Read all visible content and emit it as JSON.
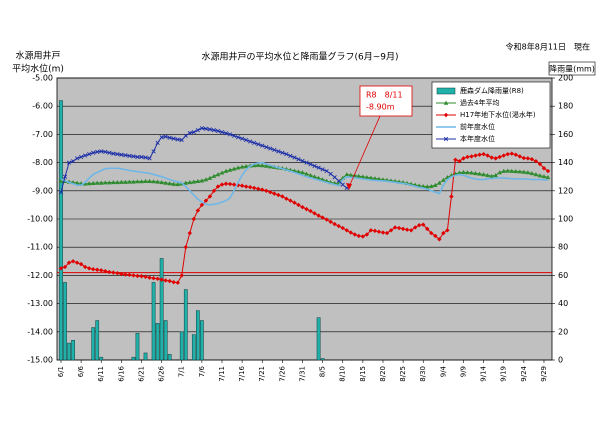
{
  "chart_data": {
    "type": "line",
    "title": "水源用井戸の平均水位と降雨量グラフ(6月~9月)",
    "date_note": "令和8年8月11日　現在",
    "y_label": [
      "水源用井戸",
      "平均水位(m)"
    ],
    "y2_label": "降雨量(mm)",
    "annotation": {
      "lines": [
        "R8　8/11",
        "-8.90m"
      ],
      "color": "#e00000"
    },
    "legend": "upper right",
    "grid": true,
    "reference_line": {
      "value": -11.9,
      "color": "#e00000"
    },
    "ylim": [
      -15,
      -5
    ],
    "yticks": [
      {
        "value": -5,
        "label": "-5.00"
      },
      {
        "value": -6,
        "label": "-6.00"
      },
      {
        "value": -7,
        "label": "-7.00"
      },
      {
        "value": -8,
        "label": "-8.00"
      },
      {
        "value": -9,
        "label": "-9.00"
      },
      {
        "value": -10,
        "label": "-10.00"
      },
      {
        "value": -11,
        "label": "-11.00"
      },
      {
        "value": -12,
        "label": "-12.00"
      },
      {
        "value": -13,
        "label": "-13.00"
      },
      {
        "value": -14,
        "label": "-14.00"
      },
      {
        "value": -15,
        "label": "-15.00"
      }
    ],
    "y2lim": [
      0,
      200
    ],
    "y2ticks": [
      0,
      20,
      40,
      60,
      80,
      100,
      120,
      140,
      160,
      180,
      200
    ],
    "categories": [
      "6/1",
      null,
      null,
      null,
      null,
      "6/6",
      null,
      null,
      null,
      null,
      "6/11",
      null,
      null,
      null,
      null,
      "6/16",
      null,
      null,
      null,
      null,
      "6/21",
      null,
      null,
      null,
      null,
      "6/26",
      null,
      null,
      null,
      null,
      "7/1",
      null,
      null,
      null,
      null,
      "7/6",
      null,
      null,
      null,
      null,
      "7/11",
      null,
      null,
      null,
      null,
      "7/16",
      null,
      null,
      null,
      null,
      "7/21",
      null,
      null,
      null,
      null,
      "7/26",
      null,
      null,
      null,
      null,
      "7/31",
      null,
      null,
      null,
      null,
      "8/5",
      null,
      null,
      null,
      null,
      "8/10",
      null,
      null,
      null,
      null,
      "8/15",
      null,
      null,
      null,
      null,
      "8/20",
      null,
      null,
      null,
      null,
      "8/25",
      null,
      null,
      null,
      null,
      "8/30",
      null,
      null,
      null,
      null,
      "9/4",
      null,
      null,
      null,
      null,
      "9/9",
      null,
      null,
      null,
      null,
      "9/14",
      null,
      null,
      null,
      null,
      "9/19",
      null,
      null,
      null,
      null,
      "9/24",
      null,
      null,
      null,
      null,
      "9/29",
      null
    ],
    "series": [
      {
        "name": "鹿森ダム降雨量(R8)",
        "type": "bar",
        "axis": "y2",
        "color": "#20b2aa",
        "values": [
          184,
          55,
          12,
          14,
          0,
          0,
          0,
          0,
          23,
          28,
          2,
          0,
          0,
          0,
          0,
          0,
          0,
          0,
          2,
          19,
          0,
          5,
          0,
          55,
          26,
          72,
          28,
          4,
          0,
          0,
          20,
          50,
          0,
          18,
          35,
          28,
          0,
          0,
          0,
          0,
          0,
          0,
          0,
          0,
          0,
          0,
          0,
          0,
          0,
          0,
          0,
          0,
          0,
          0,
          0,
          0,
          0,
          0,
          0,
          0,
          0,
          0,
          0,
          0,
          30,
          1,
          0,
          0,
          0,
          0,
          0,
          0,
          null,
          null,
          null,
          null,
          null,
          null,
          null,
          null,
          null,
          null,
          null,
          null,
          null,
          null,
          null,
          null,
          null,
          null,
          null,
          null,
          null,
          null,
          null,
          null,
          null,
          null,
          null,
          null,
          null,
          null,
          null,
          null,
          null,
          null,
          null,
          null,
          null,
          null,
          null,
          null,
          null,
          null,
          null,
          null,
          null,
          null,
          null,
          null,
          null,
          null
        ]
      },
      {
        "name": "過去4年平均",
        "color": "#2e8b2e",
        "marker": "triangle",
        "values": [
          -8.65,
          -8.66,
          -8.68,
          -8.7,
          -8.72,
          -8.74,
          -8.75,
          -8.74,
          -8.73,
          -8.72,
          -8.72,
          -8.71,
          -8.71,
          -8.7,
          -8.7,
          -8.69,
          -8.69,
          -8.68,
          -8.68,
          -8.67,
          -8.67,
          -8.66,
          -8.66,
          -8.67,
          -8.68,
          -8.7,
          -8.72,
          -8.74,
          -8.76,
          -8.77,
          -8.75,
          -8.72,
          -8.7,
          -8.68,
          -8.66,
          -8.64,
          -8.6,
          -8.55,
          -8.48,
          -8.42,
          -8.36,
          -8.3,
          -8.26,
          -8.22,
          -8.18,
          -8.15,
          -8.13,
          -8.11,
          -8.1,
          -8.09,
          -8.1,
          -8.12,
          -8.14,
          -8.16,
          -8.18,
          -8.2,
          -8.23,
          -8.26,
          -8.29,
          -8.32,
          -8.35,
          -8.4,
          -8.45,
          -8.5,
          -8.55,
          -8.6,
          -8.65,
          -8.7,
          -8.73,
          -8.75,
          -8.55,
          -8.42,
          -8.44,
          -8.46,
          -8.48,
          -8.5,
          -8.52,
          -8.54,
          -8.56,
          -8.58,
          -8.6,
          -8.62,
          -8.64,
          -8.66,
          -8.68,
          -8.7,
          -8.73,
          -8.76,
          -8.79,
          -8.82,
          -8.84,
          -8.85,
          -8.84,
          -8.8,
          -8.72,
          -8.62,
          -8.52,
          -8.45,
          -8.4,
          -8.36,
          -8.34,
          -8.35,
          -8.36,
          -8.38,
          -8.4,
          -8.42,
          -8.45,
          -8.48,
          -8.45,
          -8.35,
          -8.3,
          -8.29,
          -8.3,
          -8.31,
          -8.32,
          -8.33,
          -8.35,
          -8.38,
          -8.42,
          -8.46,
          -8.49,
          -8.52
        ]
      },
      {
        "name": "H17年地下水位(渇水年)",
        "color": "#e00000",
        "marker": "diamond",
        "values": [
          -11.75,
          -11.7,
          -11.55,
          -11.5,
          -11.55,
          -11.6,
          -11.7,
          -11.75,
          -11.78,
          -11.8,
          -11.82,
          -11.85,
          -11.88,
          -11.9,
          -11.92,
          -11.95,
          -11.97,
          -11.98,
          -12.0,
          -12.02,
          -12.03,
          -12.05,
          -12.08,
          -12.1,
          -12.12,
          -12.15,
          -12.18,
          -12.2,
          -12.24,
          -12.26,
          -12.0,
          -11.0,
          -10.5,
          -10.0,
          -9.7,
          -9.5,
          -9.35,
          -9.2,
          -9.0,
          -8.85,
          -8.78,
          -8.75,
          -8.76,
          -8.78,
          -8.8,
          -8.82,
          -8.85,
          -8.87,
          -8.9,
          -8.93,
          -8.96,
          -9.0,
          -9.05,
          -9.1,
          -9.15,
          -9.2,
          -9.28,
          -9.35,
          -9.42,
          -9.5,
          -9.58,
          -9.65,
          -9.72,
          -9.8,
          -9.88,
          -9.95,
          -10.02,
          -10.1,
          -10.18,
          -10.25,
          -10.32,
          -10.4,
          -10.48,
          -10.55,
          -10.6,
          -10.62,
          -10.55,
          -10.4,
          -10.42,
          -10.45,
          -10.48,
          -10.5,
          -10.4,
          -10.3,
          -10.32,
          -10.35,
          -10.38,
          -10.4,
          -10.3,
          -10.22,
          -10.2,
          -10.35,
          -10.5,
          -10.6,
          -10.72,
          -10.5,
          -10.4,
          -9.2,
          -7.9,
          -7.95,
          -7.85,
          -7.8,
          -7.78,
          -7.75,
          -7.72,
          -7.7,
          -7.75,
          -7.82,
          -7.85,
          -7.8,
          -7.75,
          -7.7,
          -7.68,
          -7.72,
          -7.78,
          -7.84,
          -7.85,
          -7.88,
          -7.95,
          -8.05,
          -8.2,
          -8.3
        ]
      },
      {
        "name": "前年度水位",
        "color": "#6fb7e6",
        "values": [
          -8.6,
          -8.65,
          -8.7,
          -8.75,
          -8.8,
          -8.8,
          -8.7,
          -8.55,
          -8.42,
          -8.35,
          -8.28,
          -8.22,
          -8.2,
          -8.2,
          -8.2,
          -8.22,
          -8.25,
          -8.28,
          -8.3,
          -8.32,
          -8.34,
          -8.36,
          -8.38,
          -8.42,
          -8.46,
          -8.5,
          -8.55,
          -8.6,
          -8.65,
          -8.68,
          -8.72,
          -8.85,
          -9.0,
          -9.15,
          -9.3,
          -9.4,
          -9.48,
          -9.5,
          -9.48,
          -9.45,
          -9.4,
          -9.35,
          -9.25,
          -9.0,
          -8.7,
          -8.45,
          -8.25,
          -8.12,
          -8.05,
          -8.02,
          -8.0,
          -8.05,
          -8.1,
          -8.14,
          -8.18,
          -8.22,
          -8.26,
          -8.3,
          -8.35,
          -8.4,
          -8.45,
          -8.5,
          -8.54,
          -8.58,
          -8.62,
          -8.66,
          -8.7,
          -8.74,
          -8.78,
          -8.82,
          -8.6,
          -8.5,
          -8.52,
          -8.54,
          -8.56,
          -8.58,
          -8.6,
          -8.62,
          -8.63,
          -8.64,
          -8.65,
          -8.66,
          -8.68,
          -8.7,
          -8.72,
          -8.74,
          -8.76,
          -8.8,
          -8.84,
          -8.88,
          -8.9,
          -8.95,
          -9.0,
          -9.05,
          -9.1,
          -8.8,
          -8.6,
          -8.5,
          -8.45,
          -8.42,
          -8.45,
          -8.5,
          -8.55,
          -8.58,
          -8.6,
          -8.6,
          -8.58,
          -8.56,
          -8.55,
          -8.55,
          -8.55,
          -8.56,
          -8.57,
          -8.58,
          -8.58,
          -8.58,
          -8.59,
          -8.6,
          -8.6,
          -8.6,
          -8.61,
          -8.62
        ]
      },
      {
        "name": "本年度水位",
        "color": "#1c2fa8",
        "marker": "x",
        "values": [
          -9.05,
          -8.5,
          -8.0,
          -7.95,
          -7.85,
          -7.8,
          -7.75,
          -7.7,
          -7.65,
          -7.62,
          -7.6,
          -7.62,
          -7.65,
          -7.68,
          -7.7,
          -7.72,
          -7.74,
          -7.76,
          -7.78,
          -7.8,
          -7.8,
          -7.82,
          -7.85,
          -7.6,
          -7.3,
          -7.1,
          -7.08,
          -7.12,
          -7.15,
          -7.18,
          -7.2,
          -7.05,
          -6.95,
          -6.92,
          -6.85,
          -6.78,
          -6.8,
          -6.82,
          -6.85,
          -6.88,
          -6.92,
          -6.96,
          -7.0,
          -7.05,
          -7.1,
          -7.15,
          -7.2,
          -7.25,
          -7.3,
          -7.35,
          -7.4,
          -7.45,
          -7.5,
          -7.55,
          -7.6,
          -7.65,
          -7.7,
          -7.76,
          -7.82,
          -7.88,
          -7.94,
          -8.0,
          -8.06,
          -8.12,
          -8.18,
          -8.24,
          -8.3,
          -8.4,
          -8.52,
          -8.65,
          -8.78,
          -8.9,
          null,
          null,
          null,
          null,
          null,
          null,
          null,
          null,
          null,
          null,
          null,
          null,
          null,
          null,
          null,
          null,
          null,
          null,
          null,
          null,
          null,
          null,
          null,
          null,
          null,
          null,
          null,
          null,
          null,
          null,
          null,
          null,
          null,
          null,
          null,
          null,
          null,
          null,
          null,
          null,
          null,
          null,
          null,
          null,
          null,
          null,
          null,
          null,
          null,
          null
        ]
      }
    ]
  }
}
